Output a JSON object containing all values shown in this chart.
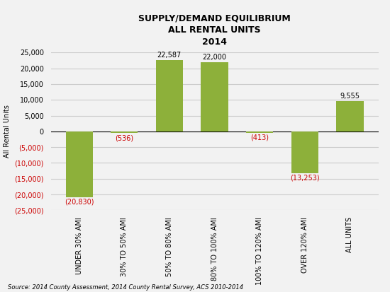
{
  "title": "SUPPLY/DEMAND EQUILIBRIUM\nALL RENTAL UNITS\n2014",
  "categories": [
    "UNDER 30% AMI",
    "30% TO 50% AMI",
    "50% TO 80% AMI",
    "80% TO 100% AMI",
    "100% TO 120% AMI",
    "OVER 120% AMI",
    "ALL UNITS"
  ],
  "values": [
    -20830,
    -536,
    22587,
    22000,
    -413,
    -13253,
    9555
  ],
  "bar_color": "#8db03a",
  "ylabel": "All Rental Units",
  "ylim": [
    -25000,
    25000
  ],
  "yticks": [
    -25000,
    -20000,
    -15000,
    -10000,
    -5000,
    0,
    5000,
    10000,
    15000,
    20000,
    25000
  ],
  "label_color_positive": "#000000",
  "label_color_negative": "#cc0000",
  "source_text": "Source: 2014 County Assessment, 2014 County Rental Survey, ACS 2010-2014",
  "background_color": "#f2f2f2",
  "grid_color": "#cccccc",
  "title_fontsize": 9,
  "axis_label_fontsize": 7,
  "tick_fontsize": 7,
  "bar_label_fontsize": 7,
  "source_fontsize": 6
}
